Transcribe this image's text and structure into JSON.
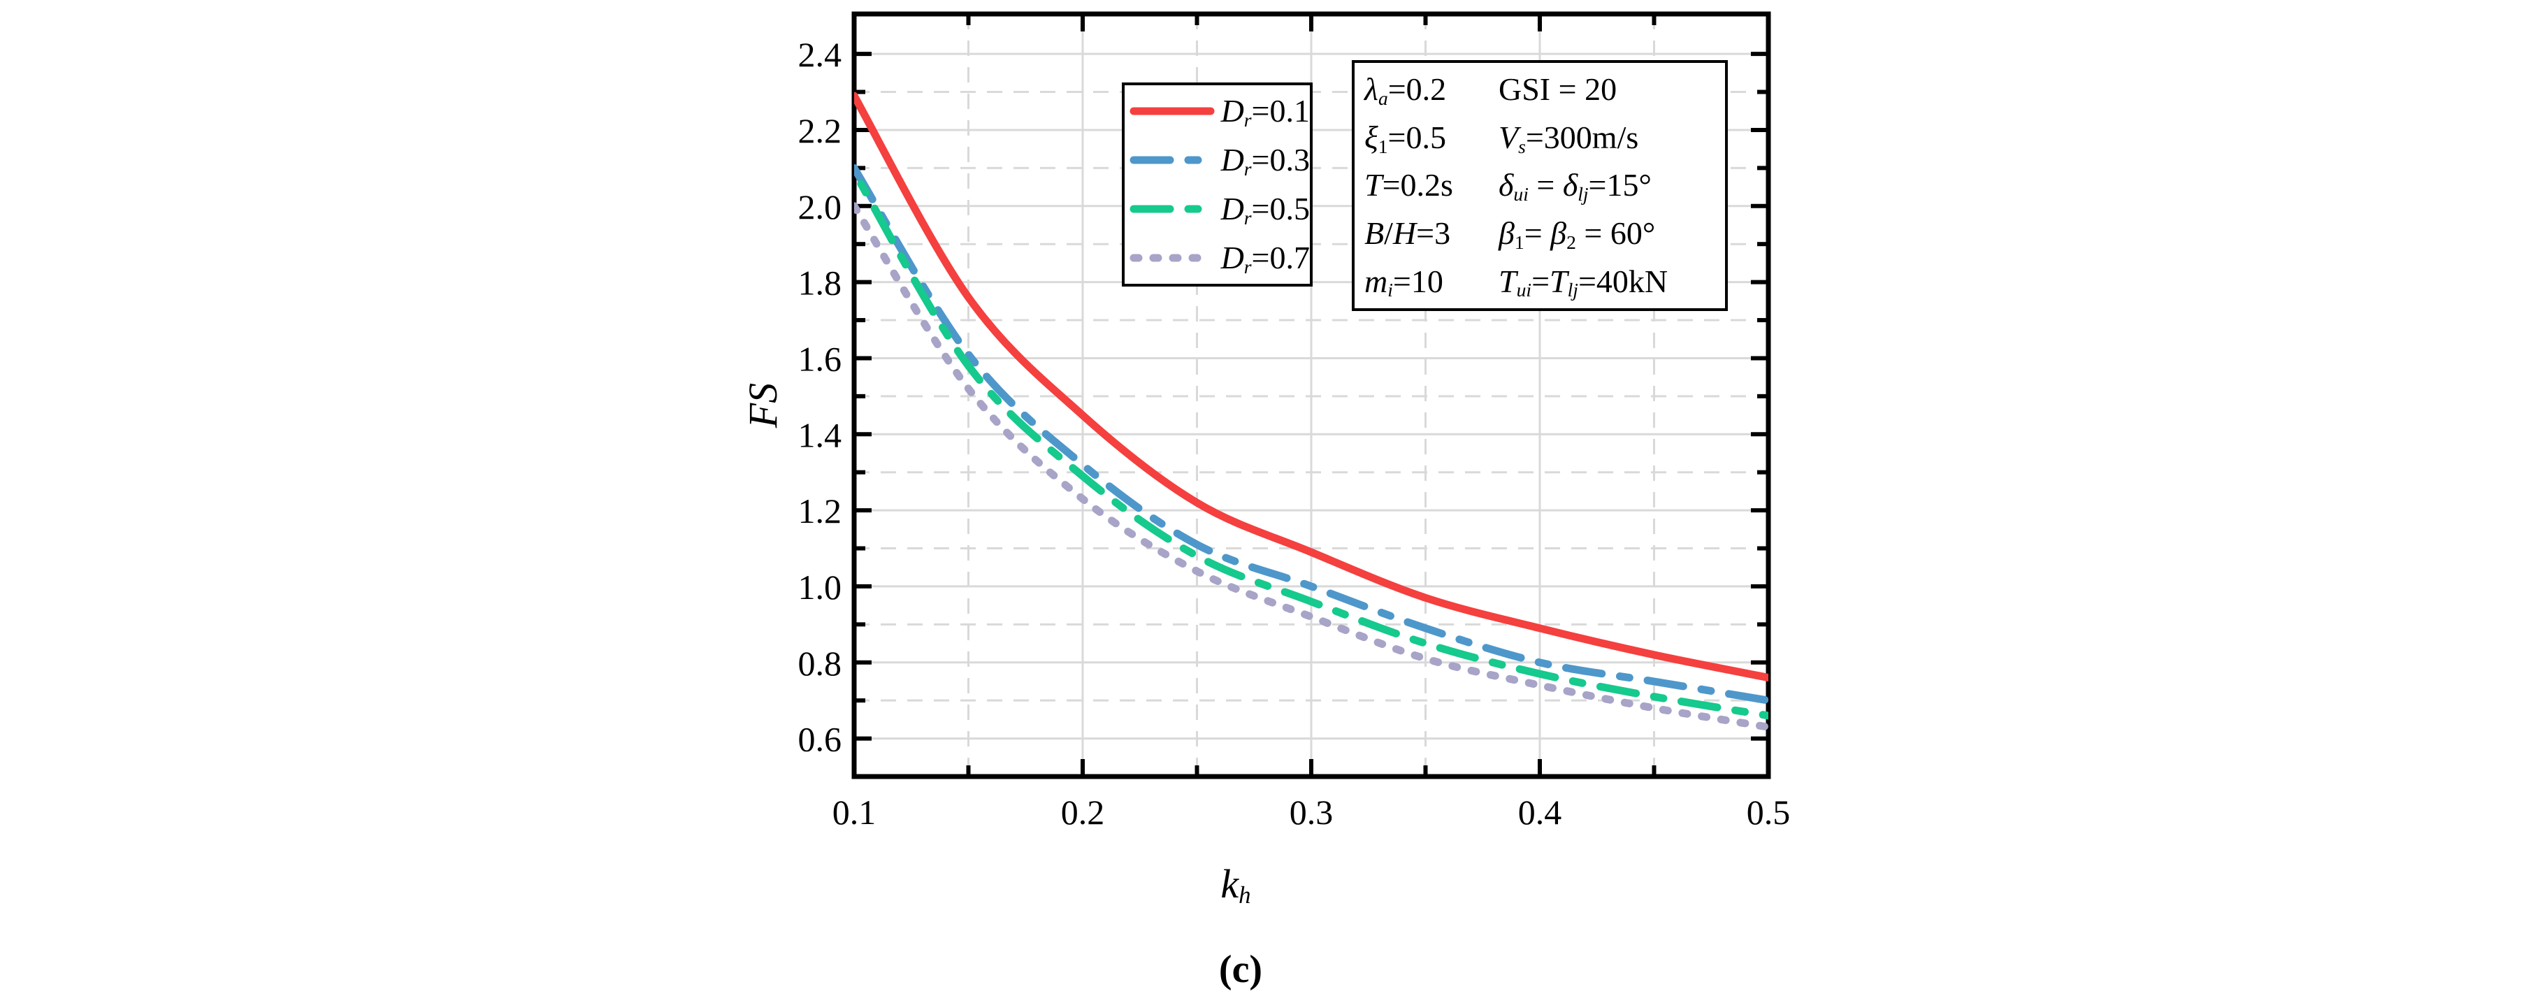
{
  "figure": {
    "background": "#ffffff",
    "caption": "(c)"
  },
  "chart_data": {
    "type": "line",
    "title": "",
    "xlabel": "k_h",
    "ylabel": "FS",
    "xlabel_tokens": [
      {
        "t": "k",
        "i": 1
      },
      {
        "t": "h",
        "i": 1,
        "s": 1
      }
    ],
    "ylabel_tokens": [
      {
        "t": "FS",
        "i": 1
      }
    ],
    "legend_position": "upper-left-inside",
    "grid": {
      "color": "#d9d9d9",
      "major_style": "solid",
      "minor_style": "dashed"
    },
    "axis_color": "#000000",
    "axes": {
      "x": {
        "min": 0.1,
        "max": 0.5,
        "major": [
          0.1,
          0.2,
          0.3,
          0.4,
          0.5
        ],
        "major_labels": [
          "0.1",
          "0.2",
          "0.3",
          "0.4",
          "0.5"
        ],
        "minor": [
          0.15,
          0.25,
          0.35,
          0.45
        ]
      },
      "y": {
        "min": 0.5,
        "max": 2.505,
        "major": [
          0.6,
          0.8,
          1.0,
          1.2,
          1.4,
          1.6,
          1.8,
          2.0,
          2.2,
          2.4
        ],
        "major_labels": [
          "0.6",
          "0.8",
          "1.0",
          "1.2",
          "1.4",
          "1.6",
          "1.8",
          "2.0",
          "2.2",
          "2.4"
        ],
        "minor": [
          0.7,
          0.9,
          1.1,
          1.3,
          1.5,
          1.7,
          1.9,
          2.1,
          2.3
        ]
      }
    },
    "x_samples": [
      0.1,
      0.15,
      0.2,
      0.25,
      0.3,
      0.35,
      0.4,
      0.45,
      0.5
    ],
    "series": [
      {
        "id": "dr-0-1",
        "label": "Dr=0.1",
        "label_tokens": [
          {
            "t": "D",
            "i": 1
          },
          {
            "t": "r",
            "i": 1,
            "s": 1
          },
          {
            "t": "=0.1"
          }
        ],
        "color": "#f4403e",
        "dash": "solid",
        "dash_offset": 0,
        "values": [
          2.29,
          1.76,
          1.45,
          1.22,
          1.09,
          0.97,
          0.89,
          0.82,
          0.76
        ]
      },
      {
        "id": "dr-0-3",
        "label": "Dr=0.3",
        "label_tokens": [
          {
            "t": "D",
            "i": 1
          },
          {
            "t": "r",
            "i": 1,
            "s": 1
          },
          {
            "t": "=0.3"
          }
        ],
        "color": "#4e97cb",
        "dash": "dash-dot-dot",
        "dash_offset": 0,
        "values": [
          2.1,
          1.61,
          1.32,
          1.11,
          1.0,
          0.89,
          0.8,
          0.75,
          0.7
        ]
      },
      {
        "id": "dr-0-5",
        "label": "Dr=0.5",
        "label_tokens": [
          {
            "t": "D",
            "i": 1
          },
          {
            "t": "r",
            "i": 1,
            "s": 1
          },
          {
            "t": "=0.5"
          }
        ],
        "color": "#16c98d",
        "dash": "dash-dot-dot",
        "dash_offset": 58,
        "values": [
          2.09,
          1.58,
          1.29,
          1.08,
          0.96,
          0.85,
          0.77,
          0.71,
          0.66
        ]
      },
      {
        "id": "dr-0-7",
        "label": "Dr=0.7",
        "label_tokens": [
          {
            "t": "D",
            "i": 1
          },
          {
            "t": "r",
            "i": 1,
            "s": 1
          },
          {
            "t": "=0.7"
          }
        ],
        "color": "#a7a4c8",
        "dash": "dot",
        "dash_offset": 0,
        "values": [
          2.0,
          1.52,
          1.23,
          1.04,
          0.92,
          0.81,
          0.74,
          0.68,
          0.63
        ]
      }
    ]
  },
  "param_box": {
    "rows": [
      {
        "c1": [
          {
            "t": "λ",
            "i": 1
          },
          {
            "t": "a",
            "i": 1,
            "s": 1
          },
          {
            "t": "=0.2"
          }
        ],
        "c2": [
          {
            "t": "GSI = 20"
          }
        ]
      },
      {
        "c1": [
          {
            "t": "ξ",
            "i": 1
          },
          {
            "t": "1",
            "s": 1
          },
          {
            "t": "=0.5"
          }
        ],
        "c2": [
          {
            "t": "V",
            "i": 1
          },
          {
            "t": "s",
            "i": 1,
            "s": 1
          },
          {
            "t": "=300m/s"
          }
        ]
      },
      {
        "c1": [
          {
            "t": "T",
            "i": 1
          },
          {
            "t": "=0.2s"
          }
        ],
        "c2": [
          {
            "t": "δ",
            "i": 1
          },
          {
            "t": "ui",
            "i": 1,
            "s": 1
          },
          {
            "t": " = "
          },
          {
            "t": "δ",
            "i": 1
          },
          {
            "t": "lj",
            "i": 1,
            "s": 1
          },
          {
            "t": "=15°"
          }
        ]
      },
      {
        "c1": [
          {
            "t": "B",
            "i": 1
          },
          {
            "t": "/"
          },
          {
            "t": "H",
            "i": 1
          },
          {
            "t": "=3"
          }
        ],
        "c2": [
          {
            "t": "β",
            "i": 1
          },
          {
            "t": "1",
            "s": 1
          },
          {
            "t": "= "
          },
          {
            "t": "β",
            "i": 1
          },
          {
            "t": "2",
            "s": 1
          },
          {
            "t": " = 60°"
          }
        ]
      },
      {
        "c1": [
          {
            "t": "m",
            "i": 1
          },
          {
            "t": "i",
            "i": 1,
            "s": 1
          },
          {
            "t": "=10"
          }
        ],
        "c2": [
          {
            "t": "T",
            "i": 1
          },
          {
            "t": "ui",
            "i": 1,
            "s": 1
          },
          {
            "t": "="
          },
          {
            "t": "T",
            "i": 1
          },
          {
            "t": "lj",
            "i": 1,
            "s": 1
          },
          {
            "t": "=40kN"
          }
        ]
      }
    ]
  }
}
